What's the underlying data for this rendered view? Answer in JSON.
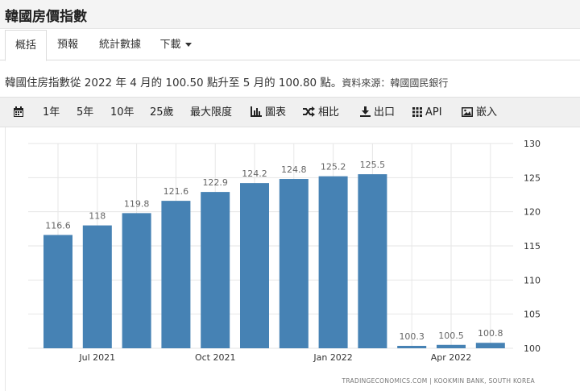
{
  "page": {
    "title": "韓國房價指數"
  },
  "tabs": [
    {
      "label": "概括",
      "active": true
    },
    {
      "label": "預報",
      "active": false
    },
    {
      "label": "統計數據",
      "active": false
    },
    {
      "label": "下載",
      "active": false
    }
  ],
  "description": {
    "text": "韓國住房指數從 2022 年 4 月的 100.50 點升至 5 月的 100.80 點。",
    "source": "資料來源：韓國國民銀行"
  },
  "toolbar": {
    "calendar_icon": "calendar-icon",
    "ranges": [
      "1年",
      "5年",
      "10年",
      "25歲",
      "最大限度"
    ],
    "chart_button": "圖表",
    "compare_button": "相比",
    "export_button": "出口",
    "api_button": "API",
    "embed_button": "嵌入"
  },
  "colors": {
    "bar": "#4682b4",
    "grid": "#e6e6e6",
    "toolbar_bg": "#f0f0f0"
  },
  "chart_data": {
    "type": "bar",
    "categories": [
      "2021-06",
      "2021-07",
      "2021-08",
      "2021-09",
      "2021-10",
      "2021-11",
      "2021-12",
      "2022-01",
      "2022-02",
      "2022-03",
      "2022-04",
      "2022-05"
    ],
    "values": [
      116.6,
      118,
      119.8,
      121.6,
      122.9,
      124.2,
      124.8,
      125.2,
      125.5,
      100.3,
      100.5,
      100.8
    ],
    "data_labels": [
      "116.6",
      "118",
      "119.8",
      "121.6",
      "122.9",
      "124.2",
      "124.8",
      "125.2",
      "125.5",
      "100.3",
      "100.5",
      "100.8"
    ],
    "x_tick_labels": [
      {
        "index": 1,
        "label": "Jul 2021"
      },
      {
        "index": 4,
        "label": "Oct 2021"
      },
      {
        "index": 7,
        "label": "Jan 2022"
      },
      {
        "index": 10,
        "label": "Apr 2022"
      }
    ],
    "y_ticks": [
      100,
      105,
      110,
      115,
      120,
      125,
      130
    ],
    "ylim": [
      100,
      130
    ],
    "y_axis_side": "right",
    "grid": true,
    "legend": "none",
    "credit": "TRADINGECONOMICS.COM  |  KOOKMIN BANK, SOUTH KOREA"
  }
}
